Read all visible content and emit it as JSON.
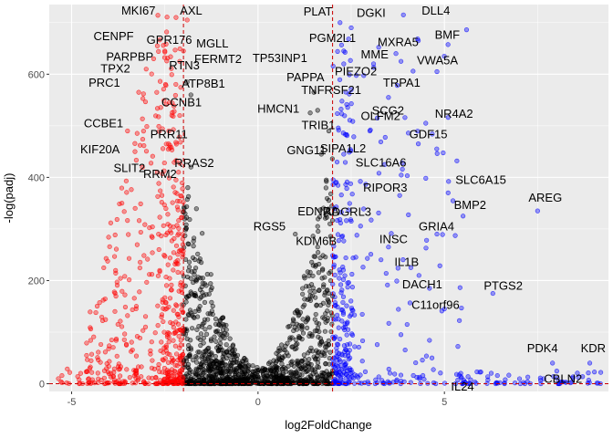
{
  "chart_data": {
    "type": "scatter",
    "title": "",
    "xlabel": "log2FoldChange",
    "ylabel": "-log(padj)",
    "xlim": [
      -5.6,
      9.4
    ],
    "ylim": [
      -15,
      735
    ],
    "x_ticks": [
      -5,
      0,
      5
    ],
    "y_ticks": [
      0,
      200,
      400,
      600
    ],
    "x_tick_labels": [
      "-5",
      "0",
      "5"
    ],
    "y_tick_labels": [
      "0",
      "200",
      "400",
      "600"
    ],
    "grid": true,
    "legend": "none",
    "thresholds": {
      "log2fc": [
        -2,
        2
      ],
      "padj_line": 0
    },
    "colors": {
      "panel_bg": "#ebebeb",
      "grid": "#ffffff",
      "down": "#ff0000",
      "neutral": "#000000",
      "up": "#0000ff",
      "threshold_line": "#cc0000"
    },
    "labeled_genes": [
      {
        "name": "MKI67",
        "x": -2.2,
        "y": 710,
        "group": "down"
      },
      {
        "name": "AXL",
        "x": -1.9,
        "y": 705,
        "group": "down"
      },
      {
        "name": "CENPF",
        "x": -2.7,
        "y": 655,
        "group": "down"
      },
      {
        "name": "GPR176",
        "x": -2.5,
        "y": 645,
        "group": "down"
      },
      {
        "name": "MGLL",
        "x": -2.0,
        "y": 645,
        "group": "down"
      },
      {
        "name": "PARPBP",
        "x": -2.8,
        "y": 630,
        "group": "down"
      },
      {
        "name": "FERMT2",
        "x": -2.1,
        "y": 625,
        "group": "down"
      },
      {
        "name": "TPX2",
        "x": -3.0,
        "y": 610,
        "group": "down"
      },
      {
        "name": "RTN3",
        "x": -1.9,
        "y": 585,
        "group": "neutral"
      },
      {
        "name": "PRC1",
        "x": -3.2,
        "y": 565,
        "group": "down"
      },
      {
        "name": "ATP8B1",
        "x": -1.8,
        "y": 560,
        "group": "neutral"
      },
      {
        "name": "CCNB1",
        "x": -2.1,
        "y": 520,
        "group": "down"
      },
      {
        "name": "CCBE1",
        "x": -3.5,
        "y": 490,
        "group": "down"
      },
      {
        "name": "PRR11",
        "x": -2.4,
        "y": 465,
        "group": "down"
      },
      {
        "name": "KIF20A",
        "x": -3.3,
        "y": 450,
        "group": "down"
      },
      {
        "name": "RRAS2",
        "x": -1.8,
        "y": 420,
        "group": "neutral"
      },
      {
        "name": "SLIT2",
        "x": -2.7,
        "y": 410,
        "group": "down"
      },
      {
        "name": "RRM2",
        "x": -2.2,
        "y": 395,
        "group": "down"
      },
      {
        "name": "DLL4",
        "x": 3.9,
        "y": 715,
        "group": "up"
      },
      {
        "name": "PLAT",
        "x": 2.2,
        "y": 700,
        "group": "up"
      },
      {
        "name": "DGKI",
        "x": 2.5,
        "y": 690,
        "group": "up"
      },
      {
        "name": "BMF",
        "x": 4.3,
        "y": 665,
        "group": "up"
      },
      {
        "name": "PGM2L1",
        "x": 2.3,
        "y": 645,
        "group": "up"
      },
      {
        "name": "MXRA5",
        "x": 3.7,
        "y": 640,
        "group": "up"
      },
      {
        "name": "TP53INP1",
        "x": 2.3,
        "y": 620,
        "group": "up"
      },
      {
        "name": "MME",
        "x": 3.1,
        "y": 620,
        "group": "up"
      },
      {
        "name": "VWA5A",
        "x": 4.8,
        "y": 605,
        "group": "up"
      },
      {
        "name": "PIEZO2",
        "x": 2.5,
        "y": 570,
        "group": "up"
      },
      {
        "name": "PAPPA",
        "x": 1.5,
        "y": 565,
        "group": "neutral"
      },
      {
        "name": "TRPA1",
        "x": 3.5,
        "y": 555,
        "group": "up"
      },
      {
        "name": "HMCN1",
        "x": 1.4,
        "y": 525,
        "group": "neutral"
      },
      {
        "name": "TNFRSF21",
        "x": 1.6,
        "y": 530,
        "group": "neutral"
      },
      {
        "name": "SCG2",
        "x": 3.2,
        "y": 515,
        "group": "up"
      },
      {
        "name": "NR4A2",
        "x": 4.5,
        "y": 505,
        "group": "up"
      },
      {
        "name": "TRIB1",
        "x": 1.9,
        "y": 490,
        "group": "neutral"
      },
      {
        "name": "OLFM2",
        "x": 3.0,
        "y": 490,
        "group": "up"
      },
      {
        "name": "GDF15",
        "x": 4.3,
        "y": 465,
        "group": "up"
      },
      {
        "name": "GNG11",
        "x": 1.7,
        "y": 445,
        "group": "neutral"
      },
      {
        "name": "SIPA1L2",
        "x": 2.3,
        "y": 445,
        "group": "up"
      },
      {
        "name": "SLC16A6",
        "x": 3.4,
        "y": 425,
        "group": "up"
      },
      {
        "name": "SLC6A15",
        "x": 5.1,
        "y": 370,
        "group": "up"
      },
      {
        "name": "RIPOR3",
        "x": 3.8,
        "y": 365,
        "group": "up"
      },
      {
        "name": "AREG",
        "x": 7.5,
        "y": 335,
        "group": "up"
      },
      {
        "name": "BMP2",
        "x": 5.5,
        "y": 325,
        "group": "up"
      },
      {
        "name": "ADGRL3",
        "x": 2.5,
        "y": 315,
        "group": "up"
      },
      {
        "name": "EDNRA",
        "x": 1.6,
        "y": 305,
        "group": "neutral"
      },
      {
        "name": "RGS5",
        "x": 1.0,
        "y": 290,
        "group": "neutral"
      },
      {
        "name": "GRIA4",
        "x": 4.8,
        "y": 290,
        "group": "up"
      },
      {
        "name": "KDM6B",
        "x": 1.6,
        "y": 265,
        "group": "neutral"
      },
      {
        "name": "INSC",
        "x": 3.5,
        "y": 265,
        "group": "up"
      },
      {
        "name": "IL1B",
        "x": 4.1,
        "y": 225,
        "group": "up"
      },
      {
        "name": "DACH1",
        "x": 4.6,
        "y": 185,
        "group": "up"
      },
      {
        "name": "PTGS2",
        "x": 6.3,
        "y": 175,
        "group": "up"
      },
      {
        "name": "C11orf96",
        "x": 5.0,
        "y": 145,
        "group": "up"
      },
      {
        "name": "PDK4",
        "x": 7.9,
        "y": 40,
        "group": "up"
      },
      {
        "name": "KDR",
        "x": 8.9,
        "y": 40,
        "group": "up"
      },
      {
        "name": "CBLN2",
        "x": 8.6,
        "y": 12,
        "group": "up"
      },
      {
        "name": "IL24",
        "x": 6.4,
        "y": 2,
        "group": "up"
      }
    ],
    "label_text": {
      "MKI67": "MKI67",
      "AXL": "AXL",
      "CENPF": "CENPF",
      "GPR176": "GPR176",
      "MGLL": "MGLL",
      "PARPBP": "PARPBP",
      "FERMT2": "FERMT2",
      "TPX2": "TPX2",
      "RTN3": "RTN3",
      "PRC1": "PRC1",
      "ATP8B1": "ATP8B1",
      "CCNB1": "CCNB1",
      "CCBE1": "CCBE1",
      "PRR11": "PRR11",
      "KIF20A": "KIF20A",
      "RRAS2": "RRAS2",
      "SLIT2": "SLIT2",
      "RRM2": "RRM2",
      "DLL4": "DLL4",
      "PLAT": "PLAT",
      "DGKI": "DGKI",
      "BMF": "BMF",
      "PGM2L1": "PGM2L1",
      "MXRA5": "MXRA5",
      "TP53INP1": "TP53INP1",
      "MME": "MME",
      "VWA5A": "VWA5A",
      "PIEZO2": "PIEZO2",
      "PAPPA": "PAPPA",
      "TRPA1": "TRPA1",
      "HMCN1": "HMCN1",
      "TNFRSF21": "TNFRSF21",
      "SCG2": "SCG2",
      "NR4A2": "NR4A2",
      "TRIB1": "TRIB1",
      "OLFM2": "OLFM2",
      "GDF15": "GDF15",
      "GNG11": "GNG11",
      "SIPA1L2": "SIPA1L2",
      "SLC16A6": "SLC16A6",
      "SLC6A15": "SLC6A15",
      "RIPOR3": "RIPOR3",
      "AREG": "AREG",
      "BMP2": "BMP2",
      "ADGRL3": "ADGRL3",
      "EDNRA": "EDNRA",
      "RGS5": "RGS5",
      "GRIA4": "GRIA4",
      "KDM6B": "KDM6B",
      "INSC": "INSC",
      "IL1B": "IL1B",
      "DACH1": "DACH1",
      "PTGS2": "PTGS2",
      "C11orf96": "C11orf96",
      "PDK4": "PDK4",
      "KDR": "KDR",
      "CBLN2": "CBLN2",
      "IL24": "IL24"
    }
  }
}
